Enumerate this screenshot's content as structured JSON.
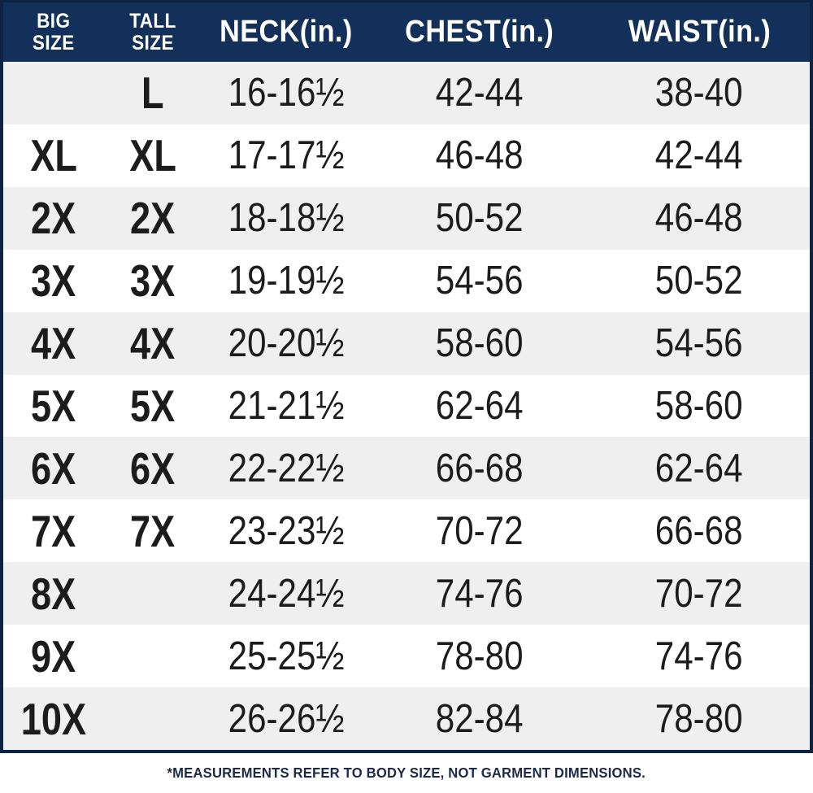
{
  "chart_data": {
    "type": "table",
    "columns": [
      "BIG SIZE",
      "TALL SIZE",
      "NECK(in.)",
      "CHEST(in.)",
      "WAIST(in.)"
    ],
    "rows": [
      [
        "",
        "L",
        "16-16½",
        "42-44",
        "38-40"
      ],
      [
        "XL",
        "XL",
        "17-17½",
        "46-48",
        "42-44"
      ],
      [
        "2X",
        "2X",
        "18-18½",
        "50-52",
        "46-48"
      ],
      [
        "3X",
        "3X",
        "19-19½",
        "54-56",
        "50-52"
      ],
      [
        "4X",
        "4X",
        "20-20½",
        "58-60",
        "54-56"
      ],
      [
        "5X",
        "5X",
        "21-21½",
        "62-64",
        "58-60"
      ],
      [
        "6X",
        "6X",
        "22-22½",
        "66-68",
        "62-64"
      ],
      [
        "7X",
        "7X",
        "23-23½",
        "70-72",
        "66-68"
      ],
      [
        "8X",
        "",
        "24-24½",
        "74-76",
        "70-72"
      ],
      [
        "9X",
        "",
        "25-25½",
        "78-80",
        "74-76"
      ],
      [
        "10X",
        "",
        "26-26½",
        "82-84",
        "78-80"
      ]
    ],
    "footnote": "*MEASUREMENTS REFER TO BODY SIZE, NOT GARMENT DIMENSIONS.",
    "layout": {
      "alternating_row_shading": true,
      "shaded_rows": "odd (1st, 3rd, ...)",
      "legend_position": "none",
      "grid": "off"
    }
  },
  "header_display": {
    "big": [
      "BIG",
      "SIZE"
    ],
    "tall": [
      "TALL",
      "SIZE"
    ],
    "neck": "NECK(in.)",
    "chest": "CHEST(in.)",
    "waist": "WAIST(in.)"
  },
  "colors": {
    "header_bg": "#12305a",
    "border": "#0e2342",
    "row_alt_bg": "#efefef",
    "row_bg": "#ffffff",
    "text": "#1c1c1c",
    "header_text": "#ffffff",
    "footnote_text": "#1b2a47"
  }
}
